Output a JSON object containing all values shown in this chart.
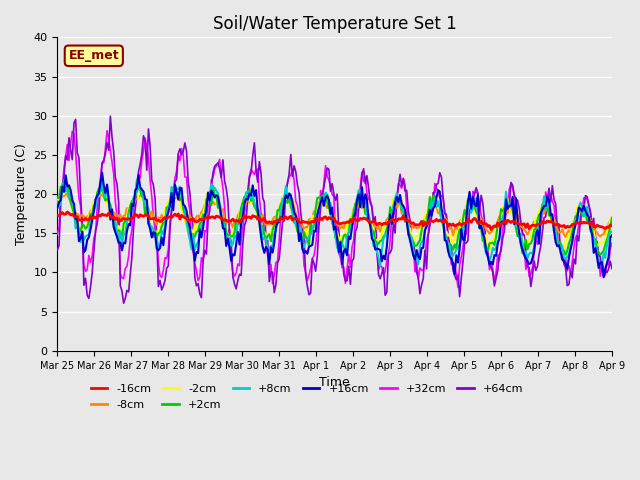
{
  "title": "Soil/Water Temperature Set 1",
  "xlabel": "Time",
  "ylabel": "Temperature (C)",
  "ylim": [
    0,
    40
  ],
  "yticks": [
    0,
    5,
    10,
    15,
    20,
    25,
    30,
    35,
    40
  ],
  "plot_bg_color": "#e8e8e8",
  "annotation_text": "EE_met",
  "series": {
    "-16cm": {
      "color": "#ff0000",
      "lw": 2.0,
      "zorder": 5
    },
    "-8cm": {
      "color": "#ff8800",
      "lw": 1.5,
      "zorder": 4
    },
    "-2cm": {
      "color": "#ffff00",
      "lw": 1.5,
      "zorder": 4
    },
    "+2cm": {
      "color": "#00cc00",
      "lw": 1.5,
      "zorder": 4
    },
    "+8cm": {
      "color": "#00cccc",
      "lw": 1.5,
      "zorder": 4
    },
    "+16cm": {
      "color": "#0000cc",
      "lw": 1.5,
      "zorder": 4
    },
    "+32cm": {
      "color": "#ff00ff",
      "lw": 1.2,
      "zorder": 3
    },
    "+64cm": {
      "color": "#8800cc",
      "lw": 1.2,
      "zorder": 3
    }
  },
  "xtick_labels": [
    "Mar 25",
    "Mar 26",
    "Mar 27",
    "Mar 28",
    "Mar 29",
    "Mar 30",
    "Mar 31",
    "Apr 1",
    "Apr 2",
    "Apr 3",
    "Apr 4",
    "Apr 5",
    "Apr 6",
    "Apr 7",
    "Apr 8",
    "Apr 9"
  ],
  "num_points": 336,
  "days": 15
}
